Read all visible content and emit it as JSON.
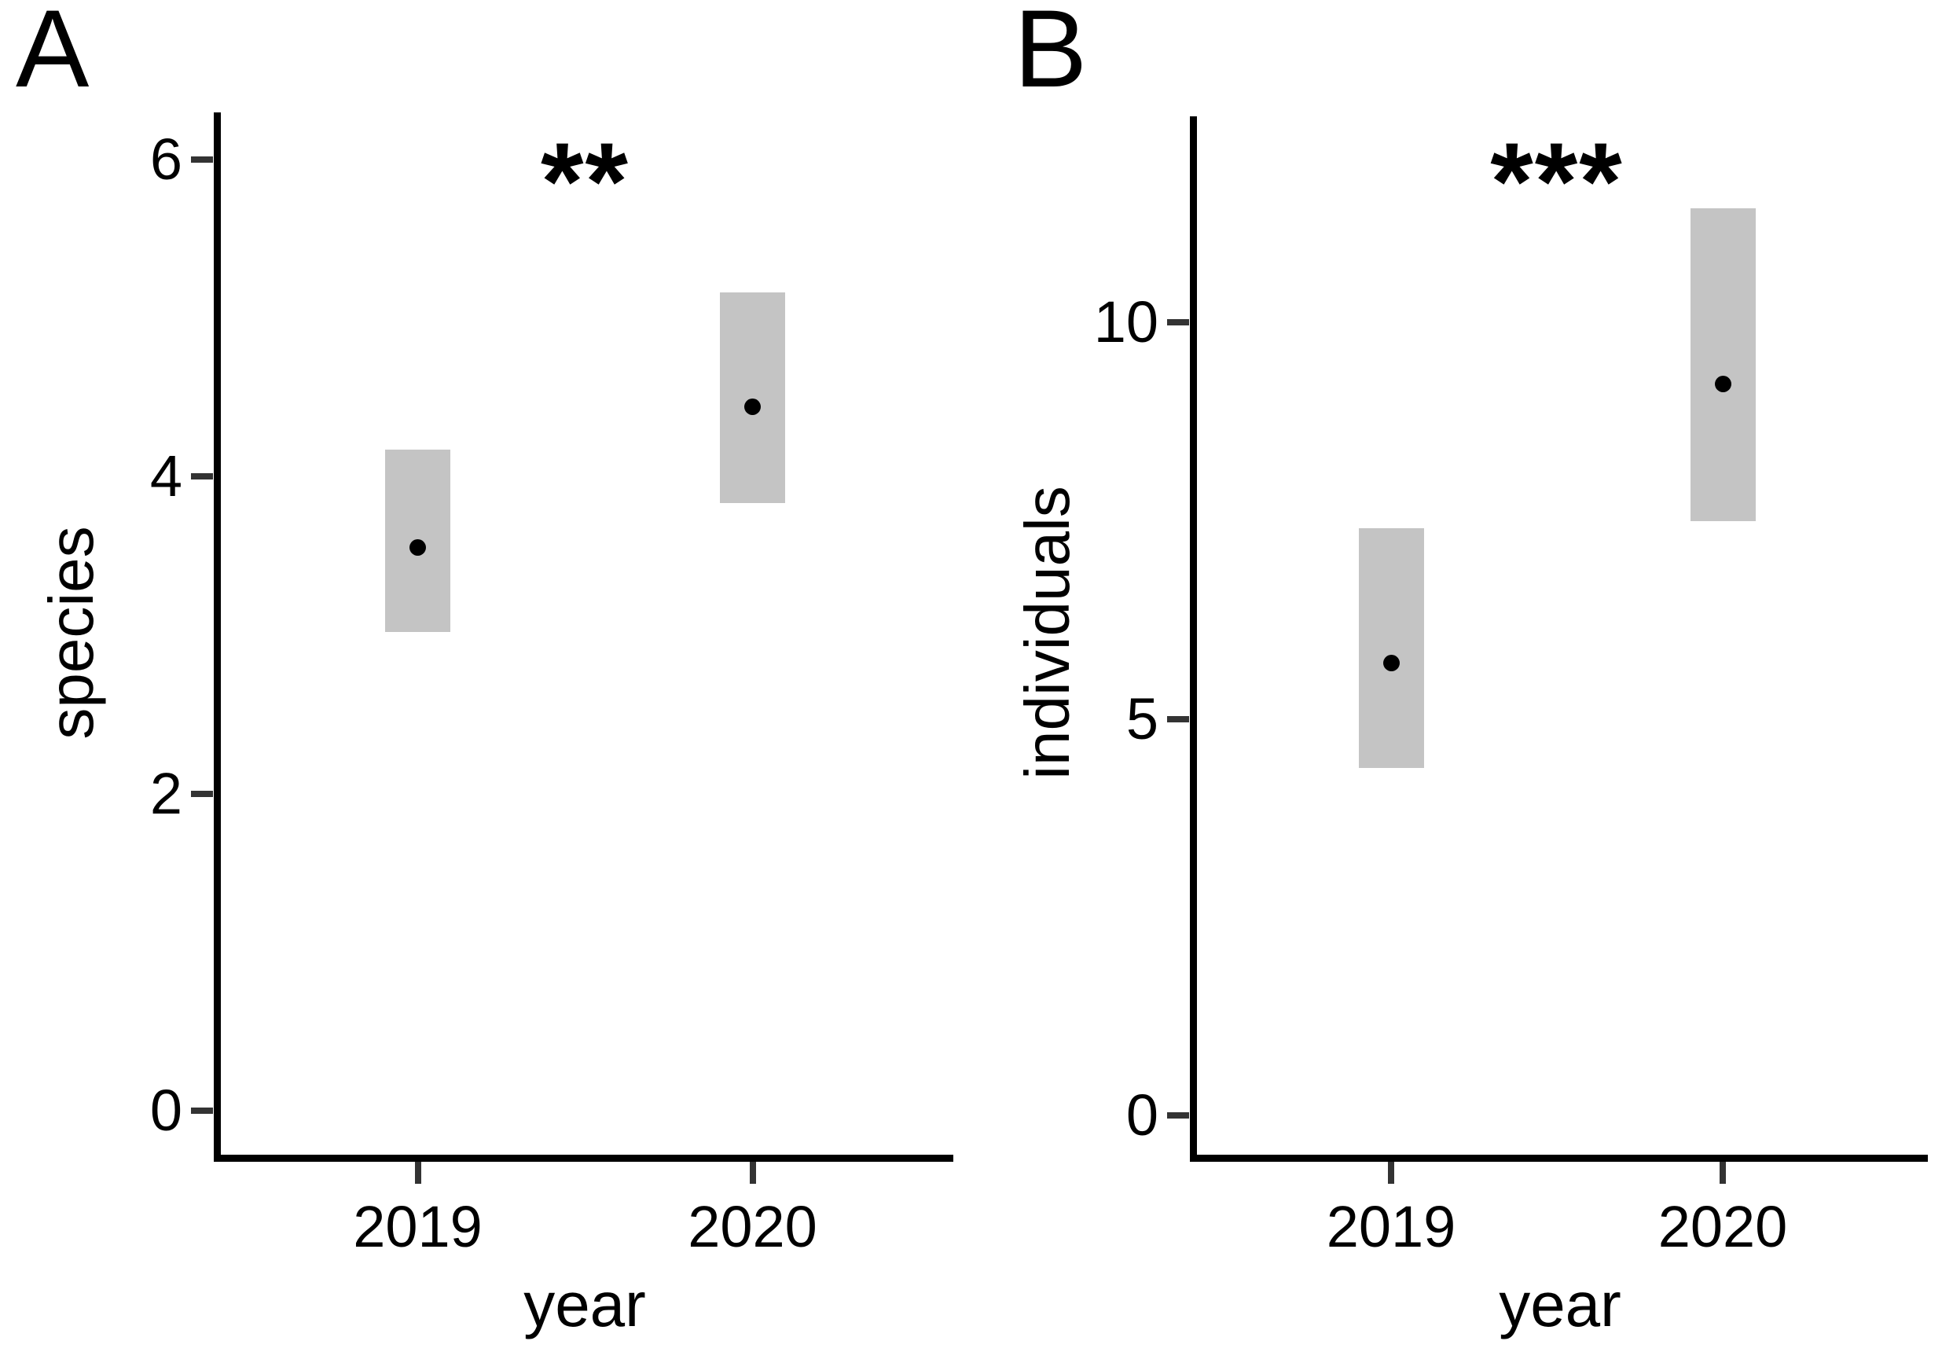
{
  "colors": {
    "background": "#ffffff",
    "bar_fill": "#c4c4c4",
    "point": "#000000",
    "axis_line": "#000000",
    "tick_mark": "#333333",
    "text": "#000000"
  },
  "chart_data": [
    {
      "type": "pointrange",
      "panel": "A",
      "significance": "**",
      "xlabel": "year",
      "ylabel": "species",
      "categories": [
        "2019",
        "2020"
      ],
      "yticks": [
        0,
        2,
        4,
        6
      ],
      "ylim": [
        -0.3,
        6.3
      ],
      "legend": "none",
      "grid": "off",
      "series": [
        {
          "category": "2019",
          "mean": 3.55,
          "ci_low": 3.02,
          "ci_high": 4.17
        },
        {
          "category": "2020",
          "mean": 4.44,
          "ci_low": 3.83,
          "ci_high": 5.16
        }
      ]
    },
    {
      "type": "pointrange",
      "panel": "B",
      "significance": "***",
      "xlabel": "year",
      "ylabel": "individuals",
      "categories": [
        "2019",
        "2020"
      ],
      "yticks": [
        0,
        5,
        10
      ],
      "ylim": [
        -0.6,
        12.6
      ],
      "legend": "none",
      "grid": "off",
      "series": [
        {
          "category": "2019",
          "mean": 5.7,
          "ci_low": 4.38,
          "ci_high": 7.4
        },
        {
          "category": "2020",
          "mean": 9.22,
          "ci_low": 7.49,
          "ci_high": 11.44
        }
      ]
    }
  ]
}
